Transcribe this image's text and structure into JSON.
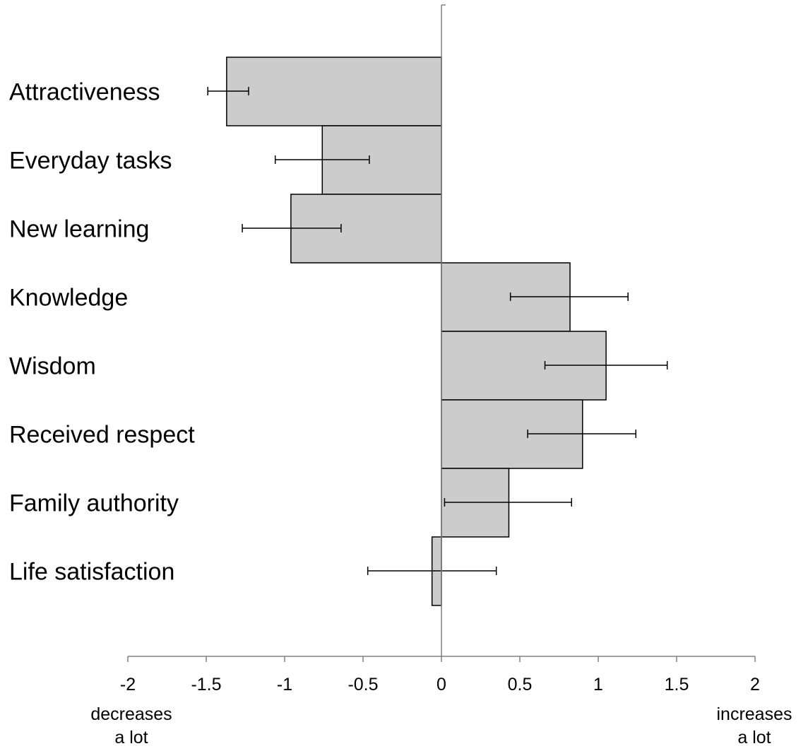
{
  "chart_data": {
    "type": "bar",
    "orientation": "horizontal",
    "categories": [
      "Attractiveness",
      "Everyday tasks",
      "New learning",
      "Knowledge",
      "Wisdom",
      "Received respect",
      "Family authority",
      "Life satisfaction"
    ],
    "values": [
      -1.37,
      -0.76,
      -0.96,
      0.82,
      1.05,
      0.9,
      0.43,
      -0.06
    ],
    "error_bars": [
      {
        "low": -1.49,
        "high": -1.23
      },
      {
        "low": -1.06,
        "high": -0.46
      },
      {
        "low": -1.27,
        "high": -0.64
      },
      {
        "low": 0.44,
        "high": 1.19
      },
      {
        "low": 0.66,
        "high": 1.44
      },
      {
        "low": 0.55,
        "high": 1.24
      },
      {
        "low": 0.02,
        "high": 0.83
      },
      {
        "low": -0.47,
        "high": 0.35
      }
    ],
    "xlim": [
      -2,
      2
    ],
    "x_ticks": [
      -2,
      -1.5,
      -1,
      -0.5,
      0,
      0.5,
      1,
      1.5,
      2
    ],
    "x_tick_labels": [
      "-2",
      "-1.5",
      "-1",
      "-0.5",
      "0",
      "0.5",
      "1",
      "1.5",
      "2"
    ],
    "x_end_labels": {
      "left": [
        "decreases",
        "a lot"
      ],
      "right": [
        "increases",
        "a lot"
      ]
    },
    "title": "",
    "xlabel": "",
    "ylabel": "",
    "grid": false,
    "colors": {
      "bar_fill": "#cccccc",
      "bar_stroke": "#000000",
      "axis": "#808080"
    }
  }
}
